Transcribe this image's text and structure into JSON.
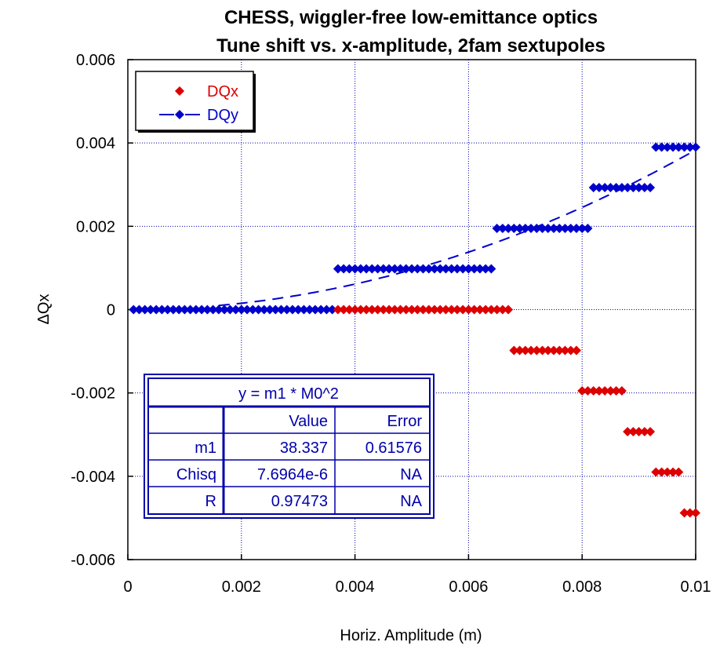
{
  "chart_data": {
    "type": "scatter",
    "title": "CHESS, wiggler-free low-emittance optics",
    "subtitle": "Tune shift vs. x-amplitude, 2fam sextupoles",
    "xlabel": "Horiz. Amplitude (m)",
    "ylabel": "ΔQx",
    "xlim": [
      0,
      0.01
    ],
    "ylim": [
      -0.006,
      0.006
    ],
    "x_ticks": [
      "0",
      "0.002",
      "0.004",
      "0.006",
      "0.008",
      "0.01"
    ],
    "y_ticks": [
      "0.006",
      "0.004",
      "0.002",
      "0",
      "-0.002",
      "-0.004",
      "-0.006"
    ],
    "grid": true,
    "legend_position": "top-left",
    "colors": {
      "DQx": "#dd0000",
      "DQy": "#0000cc",
      "fit_box": "#0000aa"
    },
    "series": [
      {
        "name": "DQx",
        "color": "#dd0000",
        "steps": [
          {
            "x_start": 0.0037,
            "x_end": 0.0067,
            "y": 0
          },
          {
            "x_start": 0.0068,
            "x_end": 0.0079,
            "y": -0.00098
          },
          {
            "x_start": 0.008,
            "x_end": 0.0087,
            "y": -0.00195
          },
          {
            "x_start": 0.0088,
            "x_end": 0.0092,
            "y": -0.00293
          },
          {
            "x_start": 0.0093,
            "x_end": 0.0097,
            "y": -0.0039
          },
          {
            "x_start": 0.0098,
            "x_end": 0.01,
            "y": -0.00488
          }
        ]
      },
      {
        "name": "DQy",
        "color": "#0000cc",
        "steps": [
          {
            "x_start": 0.0001,
            "x_end": 0.0036,
            "y": 0
          },
          {
            "x_start": 0.0037,
            "x_end": 0.0064,
            "y": 0.00098
          },
          {
            "x_start": 0.0065,
            "x_end": 0.0081,
            "y": 0.00195
          },
          {
            "x_start": 0.0082,
            "x_end": 0.0092,
            "y": 0.00293
          },
          {
            "x_start": 0.0093,
            "x_end": 0.01,
            "y": 0.0039
          }
        ],
        "fit": {
          "model": "y = m1 * x^2",
          "m1": 38.337
        }
      }
    ],
    "fit_table": {
      "equation": "y = m1 * M0^2",
      "headers": [
        "",
        "Value",
        "Error"
      ],
      "rows": [
        [
          "m1",
          "38.337",
          "0.61576"
        ],
        [
          "Chisq",
          "7.6964e-6",
          "NA"
        ],
        [
          "R",
          "0.97473",
          "NA"
        ]
      ]
    }
  }
}
